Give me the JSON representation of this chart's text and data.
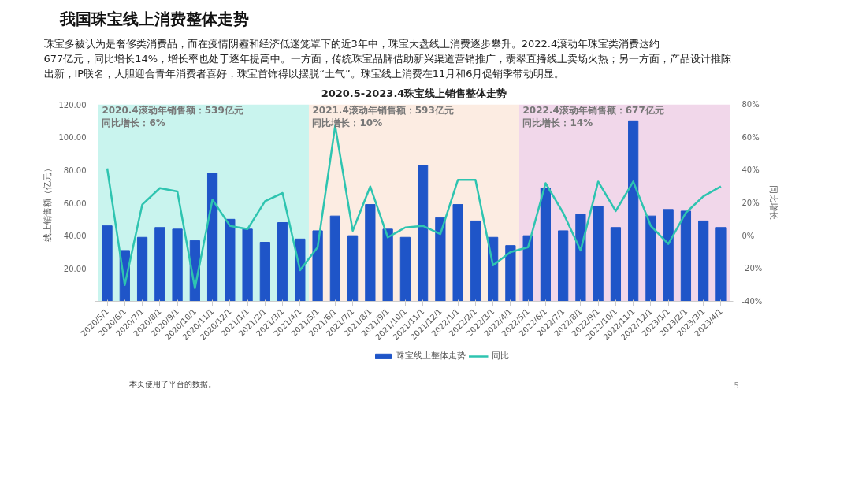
{
  "chart_data": {
    "type": "bar",
    "title": "我国珠宝线上消费整体走势",
    "subtitle": "2020.5-2023.4珠宝线上销售整体走势",
    "ylabel": "线上销售额（亿元）",
    "y2label": "同比增长",
    "categories": [
      "2020/5/1",
      "2020/6/1",
      "2020/7/1",
      "2020/8/1",
      "2020/9/1",
      "2020/10/1",
      "2020/11/1",
      "2020/12/1",
      "2021/1/1",
      "2021/2/1",
      "2021/3/1",
      "2021/4/1",
      "2021/5/1",
      "2021/6/1",
      "2021/7/1",
      "2021/8/1",
      "2021/9/1",
      "2021/10/1",
      "2021/11/1",
      "2021/12/1",
      "2022/1/1",
      "2022/2/1",
      "2022/3/1",
      "2022/4/1",
      "2022/5/1",
      "2022/6/1",
      "2022/7/1",
      "2022/8/1",
      "2022/9/1",
      "2022/10/1",
      "2022/11/1",
      "2022/12/1",
      "2023/1/1",
      "2023/2/1",
      "2023/3/1",
      "2023/4/1"
    ],
    "series": [
      {
        "name": "珠宝线上整体走势",
        "color": "#1f55c8",
        "values": [
          46,
          31,
          39,
          45,
          44,
          37,
          78,
          50,
          44,
          36,
          48,
          38,
          43,
          52,
          40,
          59,
          44,
          39,
          83,
          51,
          59,
          49,
          39,
          34,
          40,
          69,
          43,
          53,
          58,
          45,
          110,
          52,
          56,
          55,
          49,
          45
        ]
      },
      {
        "name": "同比",
        "type": "line",
        "axis": "y2",
        "color": "#2ec4b0",
        "values": [
          41,
          -30,
          19,
          29,
          27,
          -32,
          22,
          6,
          4,
          21,
          26,
          -21,
          -7,
          67,
          3,
          30,
          -1,
          5,
          6,
          1,
          34,
          34,
          -18,
          -10,
          -7,
          32,
          14,
          -9,
          33,
          15,
          33,
          6,
          -5,
          14,
          24,
          30
        ]
      }
    ],
    "ylim": [
      0,
      120
    ],
    "yticks": [
      {
        "value": 0,
        "label": "-"
      },
      {
        "value": 20,
        "label": "20.00"
      },
      {
        "value": 40,
        "label": "40.00"
      },
      {
        "value": 60,
        "label": "60.00"
      },
      {
        "value": 80,
        "label": "80.00"
      },
      {
        "value": 100,
        "label": "100.00"
      },
      {
        "value": 120,
        "label": "120.00"
      }
    ],
    "y2lim": [
      -40,
      80
    ],
    "y2ticks": [
      {
        "value": -40,
        "label": "-40%"
      },
      {
        "value": -20,
        "label": "-20%"
      },
      {
        "value": 0,
        "label": "0%"
      },
      {
        "value": 20,
        "label": "20%"
      },
      {
        "value": 40,
        "label": "40%"
      },
      {
        "value": 60,
        "label": "60%"
      },
      {
        "value": 80,
        "label": "80%"
      }
    ],
    "bands": [
      {
        "axis": "x",
        "from": "2020/5/1",
        "to": "2021/4/1",
        "color": "#c9f4ee",
        "label": "2020.4滚动年销售额：539亿元"
      },
      {
        "axis": "x",
        "from": "2021/5/1",
        "to": "2022/4/1",
        "color": "#fcece2",
        "label": "2021.4滚动年销售额：593亿元"
      },
      {
        "axis": "x",
        "from": "2022/5/1",
        "to": "2023/4/1",
        "color": "#f1d7ea",
        "label": "2022.4滚动年销售额：677亿元"
      }
    ],
    "annotations": [
      "珠宝多被认为是奢侈类消费品，而在疫情阴霾和经济低迷笼罩下的近3年中，珠宝大盘线上消费逐步攀升。2022.4滚动年珠宝类消费达约",
      "677亿元，同比增长14%，增长率也处于逐年提高中。一方面，传统珠宝品牌借助新兴渠道营销推广，翡翠直播线上卖场火热；另一方面，产品设计推陈",
      "出新，IP联名，大胆迎合青年消费者喜好，珠宝首饰得以摆脱“土气”。珠宝线上消费在11月和6月促销季带动明显。",
      "本页使用了平台的数据。",
      "5",
      {
        "text": "同比增长：6%",
        "x": "2020/5/1",
        "y": 120
      },
      {
        "text": "同比增长：10%",
        "x": "2021/5/1",
        "y": 120
      },
      {
        "text": "同比增长：14%",
        "x": "2022/5/1",
        "y": 120
      }
    ],
    "legend": "bottom"
  }
}
